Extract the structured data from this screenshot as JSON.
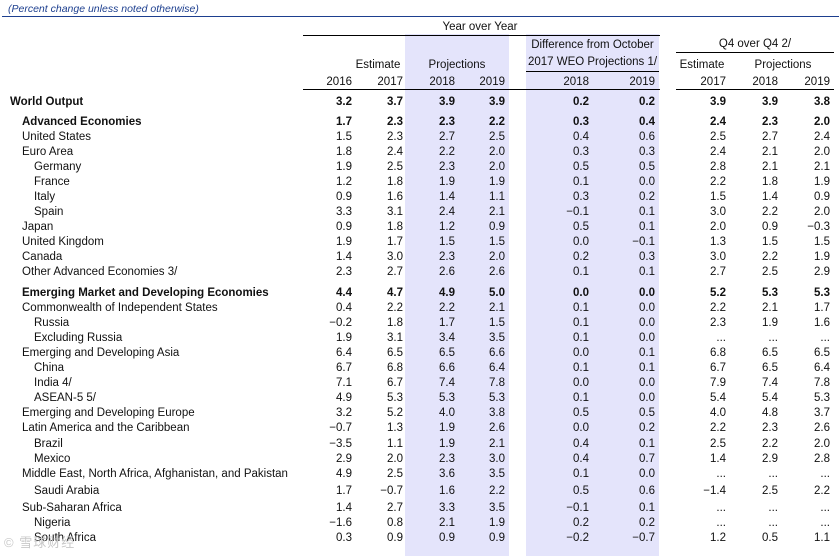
{
  "subtitle": "(Percent change unless noted otherwise)",
  "headers": {
    "yoy": "Year over Year",
    "estimate": "Estimate",
    "projections": "Projections",
    "diff_line1": "Difference from October",
    "diff_line2": "2017 WEO Projections 1/",
    "q4_title": "Q4  over Q4 2/",
    "q4_estimate": "Estimate",
    "q4_projections": "Projections",
    "years": [
      "2016",
      "2017",
      "2018",
      "2019",
      "2018",
      "2019",
      "2017",
      "2018",
      "2019"
    ]
  },
  "rows": [
    {
      "label": "World Output",
      "indent": 0,
      "bold": true,
      "values": [
        "3.2",
        "3.7",
        "3.9",
        "3.9",
        "0.2",
        "0.2",
        "3.9",
        "3.9",
        "3.8"
      ]
    },
    {
      "label": "Advanced Economies",
      "indent": 1,
      "bold": true,
      "values": [
        "1.7",
        "2.3",
        "2.3",
        "2.2",
        "0.3",
        "0.4",
        "2.4",
        "2.3",
        "2.0"
      ]
    },
    {
      "label": "United States",
      "indent": 1,
      "bold": false,
      "values": [
        "1.5",
        "2.3",
        "2.7",
        "2.5",
        "0.4",
        "0.6",
        "2.5",
        "2.7",
        "2.4"
      ]
    },
    {
      "label": "Euro Area",
      "indent": 1,
      "bold": false,
      "values": [
        "1.8",
        "2.4",
        "2.2",
        "2.0",
        "0.3",
        "0.3",
        "2.4",
        "2.1",
        "2.0"
      ]
    },
    {
      "label": "Germany",
      "indent": 2,
      "bold": false,
      "values": [
        "1.9",
        "2.5",
        "2.3",
        "2.0",
        "0.5",
        "0.5",
        "2.8",
        "2.1",
        "2.1"
      ]
    },
    {
      "label": "France",
      "indent": 2,
      "bold": false,
      "values": [
        "1.2",
        "1.8",
        "1.9",
        "1.9",
        "0.1",
        "0.0",
        "2.2",
        "1.8",
        "1.9"
      ]
    },
    {
      "label": "Italy",
      "indent": 2,
      "bold": false,
      "values": [
        "0.9",
        "1.6",
        "1.4",
        "1.1",
        "0.3",
        "0.2",
        "1.5",
        "1.4",
        "0.9"
      ]
    },
    {
      "label": "Spain",
      "indent": 2,
      "bold": false,
      "values": [
        "3.3",
        "3.1",
        "2.4",
        "2.1",
        "−0.1",
        "0.1",
        "3.0",
        "2.2",
        "2.0"
      ]
    },
    {
      "label": "Japan",
      "indent": 1,
      "bold": false,
      "values": [
        "0.9",
        "1.8",
        "1.2",
        "0.9",
        "0.5",
        "0.1",
        "2.0",
        "0.9",
        "−0.3"
      ]
    },
    {
      "label": "United Kingdom",
      "indent": 1,
      "bold": false,
      "values": [
        "1.9",
        "1.7",
        "1.5",
        "1.5",
        "0.0",
        "−0.1",
        "1.3",
        "1.5",
        "1.5"
      ]
    },
    {
      "label": "Canada",
      "indent": 1,
      "bold": false,
      "values": [
        "1.4",
        "3.0",
        "2.3",
        "2.0",
        "0.2",
        "0.3",
        "3.0",
        "2.2",
        "1.9"
      ]
    },
    {
      "label": "Other Advanced Economies 3/",
      "indent": 1,
      "bold": false,
      "values": [
        "2.3",
        "2.7",
        "2.6",
        "2.6",
        "0.1",
        "0.1",
        "2.7",
        "2.5",
        "2.9"
      ]
    },
    {
      "label": "Emerging Market and Developing Economies",
      "indent": 1,
      "bold": true,
      "values": [
        "4.4",
        "4.7",
        "4.9",
        "5.0",
        "0.0",
        "0.0",
        "5.2",
        "5.3",
        "5.3"
      ]
    },
    {
      "label": "Commonwealth of Independent States",
      "indent": 1,
      "bold": false,
      "values": [
        "0.4",
        "2.2",
        "2.2",
        "2.1",
        "0.1",
        "0.0",
        "2.2",
        "2.1",
        "1.7"
      ]
    },
    {
      "label": "Russia",
      "indent": 2,
      "bold": false,
      "values": [
        "−0.2",
        "1.8",
        "1.7",
        "1.5",
        "0.1",
        "0.0",
        "2.3",
        "1.9",
        "1.6"
      ]
    },
    {
      "label": "Excluding Russia",
      "indent": 2,
      "bold": false,
      "values": [
        "1.9",
        "3.1",
        "3.4",
        "3.5",
        "0.1",
        "0.0",
        "...",
        "...",
        "..."
      ]
    },
    {
      "label": "Emerging and Developing Asia",
      "indent": 1,
      "bold": false,
      "values": [
        "6.4",
        "6.5",
        "6.5",
        "6.6",
        "0.0",
        "0.1",
        "6.8",
        "6.5",
        "6.5"
      ]
    },
    {
      "label": "China",
      "indent": 2,
      "bold": false,
      "values": [
        "6.7",
        "6.8",
        "6.6",
        "6.4",
        "0.1",
        "0.1",
        "6.7",
        "6.5",
        "6.4"
      ]
    },
    {
      "label": "India 4/",
      "indent": 2,
      "bold": false,
      "values": [
        "7.1",
        "6.7",
        "7.4",
        "7.8",
        "0.0",
        "0.0",
        "7.9",
        "7.4",
        "7.8"
      ]
    },
    {
      "label": "ASEAN-5 5/",
      "indent": 2,
      "bold": false,
      "values": [
        "4.9",
        "5.3",
        "5.3",
        "5.3",
        "0.1",
        "0.0",
        "5.4",
        "5.4",
        "5.3"
      ]
    },
    {
      "label": "Emerging and Developing Europe",
      "indent": 1,
      "bold": false,
      "values": [
        "3.2",
        "5.2",
        "4.0",
        "3.8",
        "0.5",
        "0.5",
        "4.0",
        "4.8",
        "3.7"
      ]
    },
    {
      "label": "Latin America and the Caribbean",
      "indent": 1,
      "bold": false,
      "values": [
        "−0.7",
        "1.3",
        "1.9",
        "2.6",
        "0.0",
        "0.2",
        "2.2",
        "2.3",
        "2.6"
      ]
    },
    {
      "label": "Brazil",
      "indent": 2,
      "bold": false,
      "values": [
        "−3.5",
        "1.1",
        "1.9",
        "2.1",
        "0.4",
        "0.1",
        "2.5",
        "2.2",
        "2.0"
      ]
    },
    {
      "label": "Mexico",
      "indent": 2,
      "bold": false,
      "values": [
        "2.9",
        "2.0",
        "2.3",
        "3.0",
        "0.4",
        "0.7",
        "1.4",
        "2.9",
        "2.8"
      ]
    },
    {
      "label": "Middle East, North Africa, Afghanistan, and Pakistan",
      "indent": 1,
      "bold": false,
      "values": [
        "4.9",
        "2.5",
        "3.6",
        "3.5",
        "0.1",
        "0.0",
        "...",
        "...",
        "..."
      ]
    },
    {
      "label": "Saudi Arabia",
      "indent": 2,
      "bold": false,
      "values": [
        "1.7",
        "−0.7",
        "1.6",
        "2.2",
        "0.5",
        "0.6",
        "−1.4",
        "2.5",
        "2.2"
      ]
    },
    {
      "label": "Sub-Saharan Africa",
      "indent": 1,
      "bold": false,
      "values": [
        "1.4",
        "2.7",
        "3.3",
        "3.5",
        "−0.1",
        "0.1",
        "...",
        "...",
        "..."
      ]
    },
    {
      "label": "Nigeria",
      "indent": 2,
      "bold": false,
      "values": [
        "−1.6",
        "0.8",
        "2.1",
        "1.9",
        "0.2",
        "0.2",
        "...",
        "...",
        "..."
      ]
    },
    {
      "label": "South Africa",
      "indent": 2,
      "bold": false,
      "values": [
        "0.3",
        "0.9",
        "0.9",
        "0.9",
        "−0.2",
        "−0.7",
        "1.2",
        "0.5",
        "1.1"
      ]
    }
  ],
  "watermark": "© 雪球财经"
}
